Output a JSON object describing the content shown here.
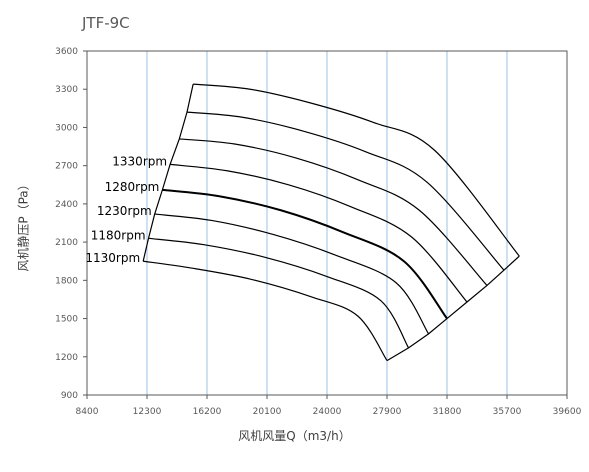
{
  "chart_data": {
    "type": "line",
    "title": "JTF-9C",
    "xlabel": "风机风量Q（m3/h）",
    "ylabel": "风机静压P（Pa）",
    "xlim": [
      8400,
      39600
    ],
    "ylim": [
      900,
      3600
    ],
    "x_ticks": [
      "8400",
      "12300",
      "16200",
      "20100",
      "24000",
      "27900",
      "31800",
      "35700",
      "39600"
    ],
    "y_ticks": [
      "900",
      "1200",
      "1500",
      "1800",
      "2100",
      "2400",
      "2700",
      "3000",
      "3300",
      "3600"
    ],
    "grid": "vertical",
    "series": [
      {
        "name": "1130rpm",
        "points": [
          [
            12050,
            1950
          ],
          [
            15000,
            1900
          ],
          [
            19000,
            1810
          ],
          [
            23000,
            1670
          ],
          [
            26000,
            1520
          ],
          [
            27900,
            1170
          ]
        ]
      },
      {
        "name": "1180rpm",
        "points": [
          [
            12400,
            2130
          ],
          [
            16000,
            2080
          ],
          [
            20000,
            1980
          ],
          [
            24000,
            1830
          ],
          [
            27500,
            1640
          ],
          [
            29300,
            1270
          ]
        ]
      },
      {
        "name": "1230rpm",
        "points": [
          [
            12800,
            2320
          ],
          [
            16500,
            2270
          ],
          [
            20500,
            2160
          ],
          [
            24500,
            2000
          ],
          [
            28500,
            1780
          ],
          [
            30600,
            1380
          ]
        ]
      },
      {
        "name": "1280rpm",
        "points": [
          [
            13300,
            2510
          ],
          [
            17000,
            2460
          ],
          [
            21000,
            2350
          ],
          [
            25000,
            2180
          ],
          [
            29000,
            1950
          ],
          [
            31800,
            1500
          ]
        ]
      },
      {
        "name": "1330rpm",
        "points": [
          [
            13800,
            2710
          ],
          [
            17500,
            2660
          ],
          [
            21500,
            2550
          ],
          [
            25500,
            2380
          ],
          [
            29500,
            2140
          ],
          [
            33100,
            1630
          ]
        ]
      },
      {
        "points": [
          [
            14400,
            2910
          ],
          [
            18000,
            2870
          ],
          [
            22000,
            2760
          ],
          [
            26000,
            2590
          ],
          [
            30000,
            2350
          ],
          [
            34400,
            1760
          ]
        ]
      },
      {
        "points": [
          [
            14900,
            3120
          ],
          [
            18500,
            3080
          ],
          [
            22500,
            2970
          ],
          [
            26500,
            2810
          ],
          [
            30500,
            2570
          ],
          [
            35500,
            1880
          ]
        ]
      },
      {
        "points": [
          [
            15300,
            3340
          ],
          [
            19000,
            3300
          ],
          [
            23000,
            3190
          ],
          [
            27000,
            3040
          ],
          [
            31000,
            2820
          ],
          [
            36500,
            1990
          ]
        ]
      }
    ],
    "bold_series": "1280rpm",
    "colors": {
      "line": "#000000",
      "grid": "#9dc3e6",
      "axis": "#595959",
      "text": "#595959"
    }
  }
}
